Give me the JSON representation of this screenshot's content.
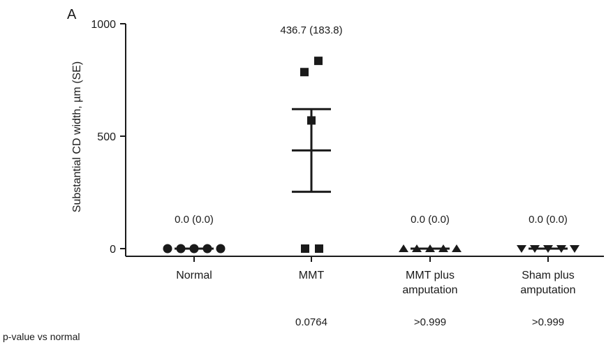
{
  "chart_data": {
    "type": "scatter",
    "panel_label": "A",
    "ylabel": "Substantial CD width, µm (SE)",
    "ylim": [
      0,
      1000
    ],
    "yticks": [
      0,
      500,
      1000
    ],
    "categories": [
      "Normal",
      "MMT",
      "MMT plus amputation",
      "Sham plus amputation"
    ],
    "category_lines": [
      [
        "Normal"
      ],
      [
        "MMT"
      ],
      [
        "MMT plus",
        "amputation"
      ],
      [
        "Sham plus",
        "amputation"
      ]
    ],
    "groups": [
      {
        "name": "Normal",
        "marker": "circle",
        "points": [
          0,
          0,
          0,
          0,
          0
        ],
        "mean_label": "0.0 (0.0)",
        "p_value": ""
      },
      {
        "name": "MMT",
        "marker": "square",
        "points": [
          785,
          835,
          570,
          0,
          0
        ],
        "mean": 436.7,
        "se": 183.8,
        "mean_label": "436.7 (183.8)",
        "p_value": "0.0764"
      },
      {
        "name": "MMT plus amputation",
        "marker": "triangle-up",
        "points": [
          0,
          0,
          0,
          0,
          0
        ],
        "mean_label": "0.0 (0.0)",
        "p_value": ">0.999"
      },
      {
        "name": "Sham plus amputation",
        "marker": "triangle-down",
        "points": [
          0,
          0,
          0,
          0,
          0
        ],
        "mean_label": "0.0 (0.0)",
        "p_value": ">0.999"
      }
    ],
    "pvalue_caption": "p-value vs normal",
    "grid": false,
    "legend": "none"
  }
}
